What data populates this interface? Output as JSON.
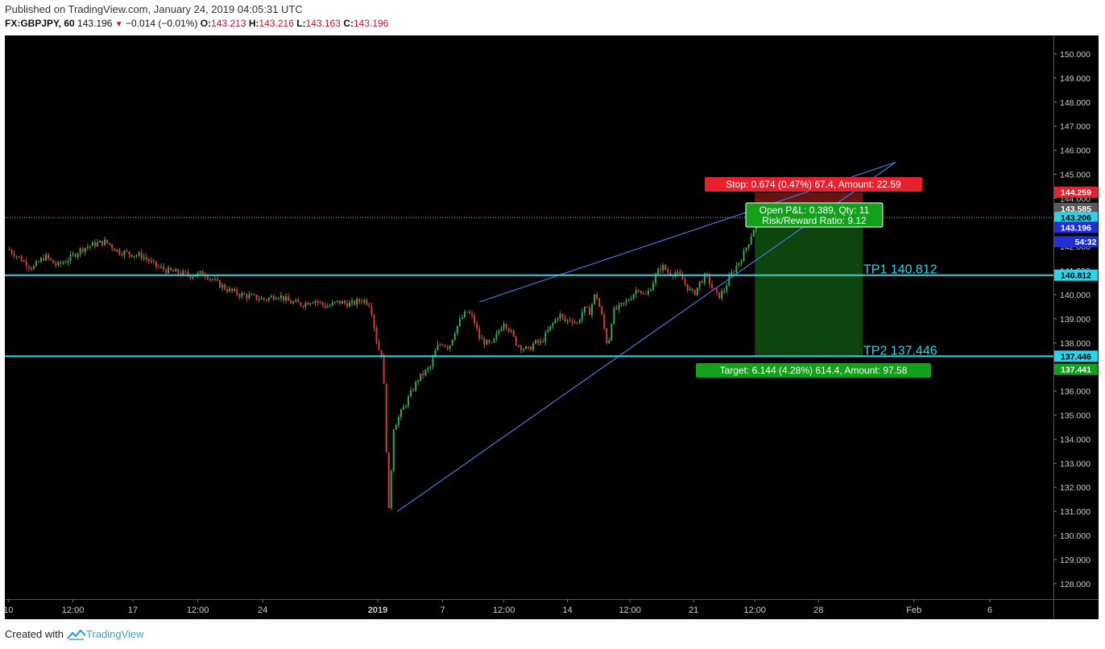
{
  "header": {
    "published": "Published on TradingView.com, January 24, 2019 04:05:31 UTC",
    "symbol": "FX:GBPJPY, 60",
    "last": "143.196",
    "change": "−0.014 (−0.01%)",
    "open_label": "O:",
    "open": "143.213",
    "high_label": "H:",
    "high": "143.216",
    "low_label": "L:",
    "low": "143.163",
    "close_label": "C:",
    "close": "143.196"
  },
  "footer": {
    "created_with": "Created with",
    "brand": "TradingView"
  },
  "colors": {
    "background": "#000000",
    "up": "#33a852",
    "down": "#d43c3c",
    "trendline": "#4a74d8",
    "level": "#2bd4e8",
    "stop": "#e8212f",
    "target": "#13a01b"
  },
  "chart_data": {
    "type": "candlestick",
    "symbol": "FX:GBPJPY",
    "interval": "60",
    "ylim": [
      127.9,
      150.5
    ],
    "y_ticks": [
      "150.000",
      "149.000",
      "148.000",
      "147.000",
      "146.000",
      "145.000",
      "144.000",
      "143.000",
      "142.000",
      "141.000",
      "140.000",
      "139.000",
      "138.000",
      "137.000",
      "136.000",
      "135.000",
      "134.000",
      "133.000",
      "132.000",
      "131.000",
      "130.000",
      "129.000",
      "128.000"
    ],
    "x_ticks": [
      {
        "label": "10",
        "t": 0.02
      },
      {
        "label": "12:00",
        "t": 5.3
      },
      {
        "label": "17",
        "t": 10.2
      },
      {
        "label": "12:00",
        "t": 15.5
      },
      {
        "label": "24",
        "t": 20.8
      },
      {
        "label": "2019",
        "t": 30.2
      },
      {
        "label": "7",
        "t": 35.5
      },
      {
        "label": "12:00",
        "t": 40.5
      },
      {
        "label": "14",
        "t": 45.7
      },
      {
        "label": "12:00",
        "t": 50.8
      },
      {
        "label": "21",
        "t": 56.0
      },
      {
        "label": "12:00",
        "t": 61.0
      },
      {
        "label": "28",
        "t": 66.2
      },
      {
        "label": "Feb",
        "t": 74.0
      },
      {
        "label": "6",
        "t": 80.2
      }
    ],
    "price_path": [
      [
        0,
        141.9
      ],
      [
        1,
        141.5
      ],
      [
        2,
        141.1
      ],
      [
        3,
        141.6
      ],
      [
        4,
        141.2
      ],
      [
        5,
        141.5
      ],
      [
        6,
        141.9
      ],
      [
        7,
        142.1
      ],
      [
        8,
        142.2
      ],
      [
        9,
        141.8
      ],
      [
        10,
        141.7
      ],
      [
        11,
        141.6
      ],
      [
        12,
        141.2
      ],
      [
        13,
        141.0
      ],
      [
        14,
        140.9
      ],
      [
        15,
        140.8
      ],
      [
        16,
        140.9
      ],
      [
        17,
        140.5
      ],
      [
        18,
        140.2
      ],
      [
        19,
        140.0
      ],
      [
        20,
        139.9
      ],
      [
        21,
        139.8
      ],
      [
        22,
        140.0
      ],
      [
        23,
        139.7
      ],
      [
        24,
        139.6
      ],
      [
        25,
        139.8
      ],
      [
        26,
        139.5
      ],
      [
        27,
        139.7
      ],
      [
        28,
        139.6
      ],
      [
        29,
        139.8
      ],
      [
        29.6,
        139.6
      ],
      [
        30.2,
        137.8
      ],
      [
        30.6,
        137.5
      ],
      [
        31.1,
        131.0
      ],
      [
        31.5,
        134.5
      ],
      [
        32.0,
        135.0
      ],
      [
        32.5,
        135.5
      ],
      [
        33.0,
        136.0
      ],
      [
        33.5,
        136.5
      ],
      [
        34.5,
        137.0
      ],
      [
        35.0,
        137.8
      ],
      [
        35.5,
        138.0
      ],
      [
        36.0,
        137.8
      ],
      [
        36.5,
        138.5
      ],
      [
        37.0,
        139.0
      ],
      [
        37.5,
        139.3
      ],
      [
        38.0,
        139.0
      ],
      [
        38.5,
        138.2
      ],
      [
        39.0,
        138.0
      ],
      [
        39.5,
        137.9
      ],
      [
        40.0,
        138.4
      ],
      [
        40.5,
        138.9
      ],
      [
        41.0,
        138.5
      ],
      [
        41.5,
        138.0
      ],
      [
        42.0,
        137.8
      ],
      [
        42.5,
        137.7
      ],
      [
        43.0,
        138.0
      ],
      [
        43.5,
        138.0
      ],
      [
        44.0,
        138.4
      ],
      [
        44.5,
        138.8
      ],
      [
        45.0,
        139.2
      ],
      [
        45.5,
        138.9
      ],
      [
        46.0,
        139.0
      ],
      [
        46.5,
        138.8
      ],
      [
        47.0,
        139.4
      ],
      [
        47.5,
        139.3
      ],
      [
        48.0,
        140.1
      ],
      [
        48.5,
        139.1
      ],
      [
        49.0,
        137.8
      ],
      [
        49.4,
        139.3
      ],
      [
        50.0,
        139.5
      ],
      [
        50.5,
        139.7
      ],
      [
        51.0,
        140.0
      ],
      [
        51.5,
        140.3
      ],
      [
        52.0,
        139.9
      ],
      [
        52.4,
        140.2
      ],
      [
        53.0,
        140.9
      ],
      [
        53.4,
        141.2
      ],
      [
        54.0,
        140.9
      ],
      [
        54.5,
        140.9
      ],
      [
        55.0,
        140.7
      ],
      [
        55.5,
        140.3
      ],
      [
        56.0,
        140.0
      ],
      [
        56.5,
        140.5
      ],
      [
        57.0,
        140.8
      ],
      [
        57.5,
        140.3
      ],
      [
        58.0,
        139.9
      ],
      [
        58.5,
        140.2
      ],
      [
        59.0,
        140.8
      ],
      [
        59.5,
        141.2
      ],
      [
        60.0,
        141.6
      ],
      [
        60.5,
        142.2
      ],
      [
        61.0,
        142.9
      ],
      [
        61.3,
        143.2
      ]
    ],
    "trendlines": [
      {
        "from": [
          31.8,
          131.0
        ],
        "to": [
          72.5,
          145.5
        ]
      },
      {
        "from": [
          38.5,
          139.7
        ],
        "to": [
          72.5,
          145.5
        ]
      }
    ],
    "levels": [
      {
        "price": 143.206,
        "style": "dotted",
        "label": "143.206"
      },
      {
        "price": 140.812,
        "text": "TP1 140.812",
        "label": "140.812"
      },
      {
        "price": 137.446,
        "text": "TP2 137.446",
        "label": "137.446"
      }
    ],
    "position": {
      "entry": 143.585,
      "stop": 144.259,
      "target": 137.441,
      "t_start": 61.0,
      "t_end": 69.8,
      "stop_text": "Stop: 0.674 (0.47%) 67.4, Amount: 22.59",
      "target_text": "Target: 6.144 (4.28%) 614.4, Amount: 97.58",
      "pnl_text": "Open P&L: 0.389, Qty: 11",
      "rr_text": "Risk/Reward Ratio: 9.12"
    },
    "price_tags": [
      {
        "price": 144.259,
        "label": "144.259",
        "bg": "#e8212f",
        "fg": "#ffffff"
      },
      {
        "price": 143.585,
        "label": "143.585",
        "bg": "#5a5a5a",
        "fg": "#ffffff"
      },
      {
        "price": 143.206,
        "label": "143.206",
        "bg": "#2bd4e8",
        "fg": "#000000"
      },
      {
        "price": 142.8,
        "label": "143.196",
        "bg": "#1e2fd8",
        "fg": "#ffffff"
      },
      {
        "price": 142.2,
        "label": "54:32",
        "bg": "#1e2fd8",
        "fg": "#ffffff"
      },
      {
        "price": 140.812,
        "label": "140.812",
        "bg": "#2bd4e8",
        "fg": "#000000"
      },
      {
        "price": 137.446,
        "label": "137.446",
        "bg": "#2bd4e8",
        "fg": "#000000"
      },
      {
        "price": 136.9,
        "label": "137.441",
        "bg": "#13a01b",
        "fg": "#ffffff"
      }
    ]
  }
}
